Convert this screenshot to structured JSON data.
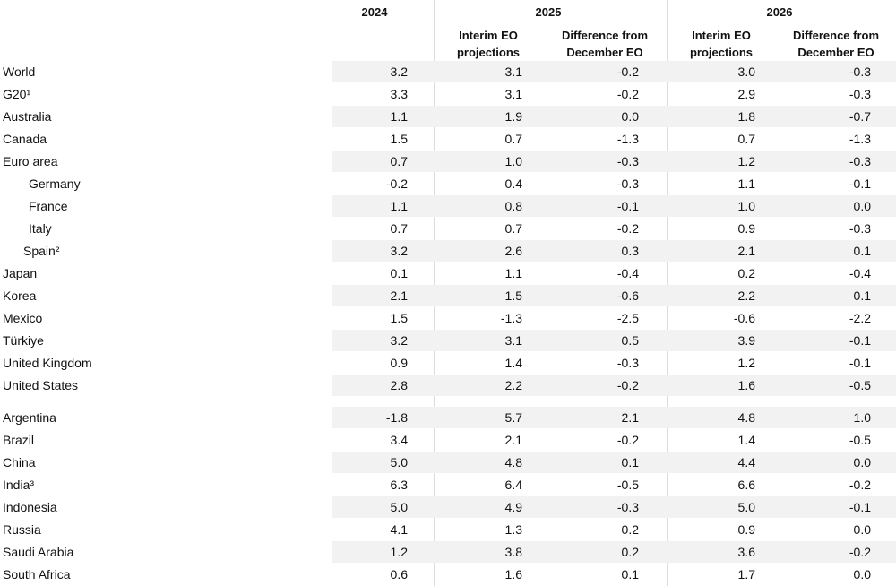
{
  "header": {
    "years": [
      "2024",
      "2025",
      "2026"
    ],
    "subheaders": [
      "Interim EO projections",
      "Difference from December EO",
      "Interim EO projections",
      "Difference from December EO"
    ]
  },
  "table": {
    "groups": [
      {
        "rows": [
          [
            "World",
            "3.2",
            "3.1",
            "-0.2",
            "3.0",
            "-0.3"
          ],
          [
            "G20¹",
            "3.3",
            "3.1",
            "-0.2",
            "2.9",
            "-0.3"
          ],
          [
            "Australia",
            "1.1",
            "1.9",
            "0.0",
            "1.8",
            "-0.7"
          ],
          [
            "Canada",
            "1.5",
            "0.7",
            "-1.3",
            "0.7",
            "-1.3"
          ],
          [
            "Euro area",
            "0.7",
            "1.0",
            "-0.3",
            "1.2",
            "-0.3"
          ],
          [
            "Germany",
            "-0.2",
            "0.4",
            "-0.3",
            "1.1",
            "-0.1"
          ],
          [
            "France",
            "1.1",
            "0.8",
            "-0.1",
            "1.0",
            "0.0"
          ],
          [
            "Italy",
            "0.7",
            "0.7",
            "-0.2",
            "0.9",
            "-0.3"
          ],
          [
            "Spain²",
            "3.2",
            "2.6",
            "0.3",
            "2.1",
            "0.1"
          ],
          [
            "Japan",
            "0.1",
            "1.1",
            "-0.4",
            "0.2",
            "-0.4"
          ],
          [
            "Korea",
            "2.1",
            "1.5",
            "-0.6",
            "2.2",
            "0.1"
          ],
          [
            "Mexico",
            "1.5",
            "-1.3",
            "-2.5",
            "-0.6",
            "-2.2"
          ],
          [
            "Türkiye",
            "3.2",
            "3.1",
            "0.5",
            "3.9",
            "-0.1"
          ],
          [
            "United Kingdom",
            "0.9",
            "1.4",
            "-0.3",
            "1.2",
            "-0.1"
          ],
          [
            "United States",
            "2.8",
            "2.2",
            "-0.2",
            "1.6",
            "-0.5"
          ]
        ]
      },
      {
        "rows": [
          [
            "Argentina",
            "-1.8",
            "5.7",
            "2.1",
            "4.8",
            "1.0"
          ],
          [
            "Brazil",
            "3.4",
            "2.1",
            "-0.2",
            "1.4",
            "-0.5"
          ],
          [
            "China",
            "5.0",
            "4.8",
            "0.1",
            "4.4",
            "0.0"
          ],
          [
            "India³",
            "6.3",
            "6.4",
            "-0.5",
            "6.6",
            "-0.2"
          ],
          [
            "Indonesia",
            "5.0",
            "4.9",
            "-0.3",
            "5.0",
            "-0.1"
          ],
          [
            "Russia",
            "4.1",
            "1.3",
            "0.2",
            "0.9",
            "0.0"
          ],
          [
            "Saudi Arabia",
            "1.2",
            "3.8",
            "0.2",
            "3.6",
            "-0.2"
          ],
          [
            "South Africa",
            "0.6",
            "1.6",
            "0.1",
            "1.7",
            "0.0"
          ]
        ]
      }
    ]
  }
}
